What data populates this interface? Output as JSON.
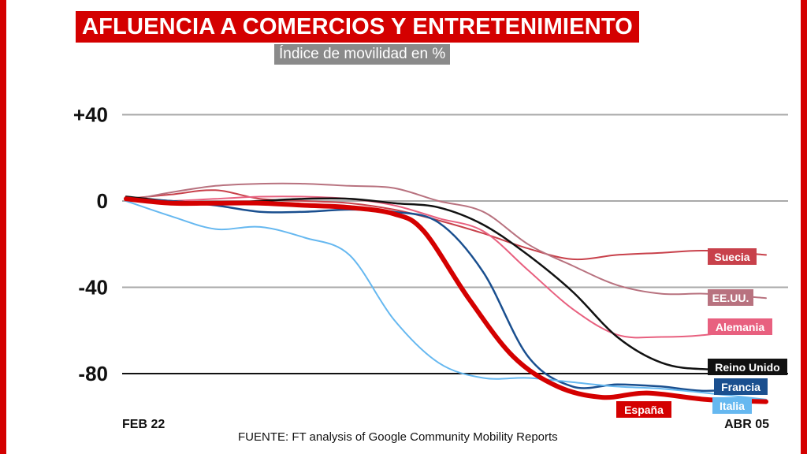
{
  "header": {
    "title": "AFLUENCIA A COMERCIOS Y ENTRETENIMIENTO",
    "subtitle": "Índice de movilidad en %"
  },
  "footer": {
    "source": "FUENTE: FT analysis of Google Community Mobility Reports"
  },
  "colors": {
    "brand_red": "#d40000",
    "grid": "#a9a9a9",
    "subtitle_bg": "#8a8a8a"
  },
  "chart_data": {
    "type": "line",
    "title": "AFLUENCIA A COMERCIOS Y ENTRETENIMIENTO",
    "subtitle": "Índice de movilidad en %",
    "ylim": [
      -95,
      50
    ],
    "y_ticks": [
      40,
      0,
      -40,
      -80
    ],
    "y_tick_labels": [
      "+40",
      "0",
      "-40",
      "-80"
    ],
    "x_range": [
      "2020-02-22",
      "2020-04-05"
    ],
    "x_tick_labels": [
      "FEB 22",
      "ABR 05"
    ],
    "grid": true,
    "legend": "inline-right",
    "series": [
      {
        "name": "Suecia",
        "color": "#c8414b",
        "width": 2,
        "x": [
          "2020-02-22",
          "2020-02-25",
          "2020-02-28",
          "2020-03-02",
          "2020-03-05",
          "2020-03-08",
          "2020-03-11",
          "2020-03-14",
          "2020-03-17",
          "2020-03-20",
          "2020-03-23",
          "2020-03-26",
          "2020-03-29",
          "2020-04-01",
          "2020-04-05"
        ],
        "y": [
          1,
          3,
          5,
          1,
          0,
          -1,
          -4,
          -9,
          -15,
          -22,
          -27,
          -25,
          -24,
          -23,
          -25
        ]
      },
      {
        "name": "EE.UU.",
        "color": "#b8727f",
        "width": 2,
        "x": [
          "2020-02-22",
          "2020-02-25",
          "2020-02-28",
          "2020-03-02",
          "2020-03-05",
          "2020-03-08",
          "2020-03-11",
          "2020-03-14",
          "2020-03-17",
          "2020-03-20",
          "2020-03-23",
          "2020-03-26",
          "2020-03-29",
          "2020-04-01",
          "2020-04-05"
        ],
        "y": [
          0,
          4,
          7,
          8,
          8,
          7,
          6,
          0,
          -5,
          -20,
          -30,
          -39,
          -43,
          -43,
          -45
        ]
      },
      {
        "name": "Alemania",
        "color": "#e8607f",
        "width": 2,
        "x": [
          "2020-02-22",
          "2020-02-25",
          "2020-02-28",
          "2020-03-02",
          "2020-03-05",
          "2020-03-08",
          "2020-03-11",
          "2020-03-14",
          "2020-03-17",
          "2020-03-20",
          "2020-03-23",
          "2020-03-26",
          "2020-03-29",
          "2020-04-01",
          "2020-04-05"
        ],
        "y": [
          0,
          0,
          1,
          2,
          2,
          1,
          -2,
          -8,
          -14,
          -32,
          -50,
          -62,
          -63,
          -62,
          -58
        ]
      },
      {
        "name": "Reino Unido",
        "color": "#111111",
        "width": 2.5,
        "x": [
          "2020-02-22",
          "2020-02-25",
          "2020-02-28",
          "2020-03-02",
          "2020-03-05",
          "2020-03-08",
          "2020-03-11",
          "2020-03-14",
          "2020-03-17",
          "2020-03-20",
          "2020-03-23",
          "2020-03-26",
          "2020-03-29",
          "2020-04-01",
          "2020-04-05"
        ],
        "y": [
          2,
          0,
          -1,
          0,
          1,
          1,
          -1,
          -3,
          -11,
          -25,
          -42,
          -63,
          -75,
          -78,
          -77
        ]
      },
      {
        "name": "Francia",
        "color": "#1a4f8f",
        "width": 2.5,
        "x": [
          "2020-02-22",
          "2020-02-25",
          "2020-02-28",
          "2020-03-02",
          "2020-03-05",
          "2020-03-08",
          "2020-03-11",
          "2020-03-14",
          "2020-03-17",
          "2020-03-20",
          "2020-03-23",
          "2020-03-26",
          "2020-03-29",
          "2020-04-01",
          "2020-04-05"
        ],
        "y": [
          1,
          0,
          -2,
          -5,
          -5,
          -4,
          -5,
          -10,
          -33,
          -72,
          -86,
          -85,
          -86,
          -88,
          -86
        ]
      },
      {
        "name": "Italia",
        "color": "#66b8f0",
        "width": 2,
        "x": [
          "2020-02-22",
          "2020-02-25",
          "2020-02-28",
          "2020-03-02",
          "2020-03-05",
          "2020-03-08",
          "2020-03-11",
          "2020-03-14",
          "2020-03-17",
          "2020-03-20",
          "2020-03-23",
          "2020-03-26",
          "2020-03-29",
          "2020-04-01",
          "2020-04-05"
        ],
        "y": [
          0,
          -7,
          -13,
          -12,
          -17,
          -25,
          -55,
          -75,
          -82,
          -82,
          -84,
          -86,
          -87,
          -89,
          -92
        ]
      },
      {
        "name": "España",
        "color": "#d40000",
        "width": 6,
        "x": [
          "2020-02-22",
          "2020-02-25",
          "2020-02-28",
          "2020-03-02",
          "2020-03-05",
          "2020-03-08",
          "2020-03-11",
          "2020-03-13",
          "2020-03-16",
          "2020-03-19",
          "2020-03-22",
          "2020-03-25",
          "2020-03-28",
          "2020-04-01",
          "2020-04-05"
        ],
        "y": [
          1,
          -1,
          -1,
          -1,
          -2,
          -3,
          -6,
          -14,
          -45,
          -72,
          -86,
          -91,
          -89,
          -92,
          -93
        ]
      }
    ]
  }
}
